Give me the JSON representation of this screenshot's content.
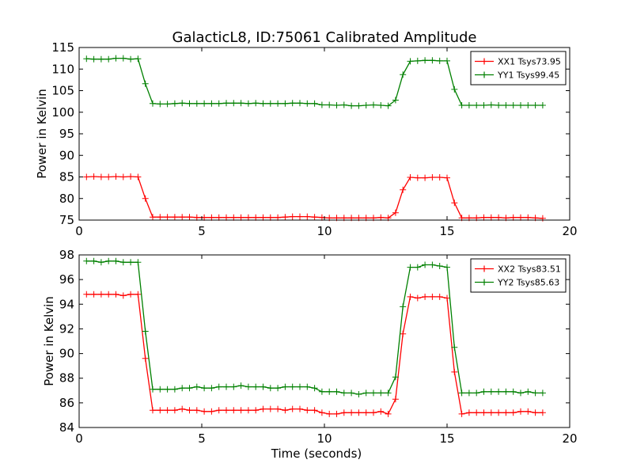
{
  "figure": {
    "title": "GalacticL8, ID:75061 Calibrated Amplitude"
  },
  "chart_data": [
    {
      "type": "line",
      "title": "GalacticL8, ID:75061 Calibrated Amplitude",
      "xlabel": "",
      "ylabel": "Power in Kelvin",
      "xlim": [
        0,
        20
      ],
      "ylim": [
        75,
        115
      ],
      "xticks": [
        0,
        5,
        10,
        15,
        20
      ],
      "yticks": [
        75,
        80,
        85,
        90,
        95,
        100,
        105,
        110,
        115
      ],
      "grid": false,
      "legend_position": "top-right",
      "x": [
        0.3,
        0.6,
        0.9,
        1.2,
        1.5,
        1.8,
        2.1,
        2.4,
        2.7,
        3.0,
        3.3,
        3.6,
        3.9,
        4.2,
        4.5,
        4.8,
        5.1,
        5.4,
        5.7,
        6.0,
        6.3,
        6.6,
        6.9,
        7.2,
        7.5,
        7.8,
        8.1,
        8.4,
        8.7,
        9.0,
        9.3,
        9.6,
        9.9,
        10.2,
        10.5,
        10.8,
        11.1,
        11.4,
        11.7,
        12.0,
        12.3,
        12.6,
        12.9,
        13.2,
        13.5,
        13.8,
        14.1,
        14.4,
        14.7,
        15.0,
        15.3,
        15.6,
        15.9,
        16.2,
        16.5,
        16.8,
        17.1,
        17.4,
        17.7,
        18.0,
        18.3,
        18.6,
        18.9
      ],
      "series": [
        {
          "name": "XX1 Tsys73.95",
          "color": "#ff0000",
          "values": [
            85.0,
            85.1,
            85.0,
            85.0,
            85.1,
            85.0,
            85.1,
            85.0,
            80.0,
            75.7,
            75.7,
            75.7,
            75.7,
            75.7,
            75.7,
            75.6,
            75.6,
            75.6,
            75.6,
            75.6,
            75.6,
            75.6,
            75.6,
            75.6,
            75.6,
            75.6,
            75.6,
            75.7,
            75.8,
            75.8,
            75.8,
            75.7,
            75.6,
            75.5,
            75.5,
            75.5,
            75.5,
            75.5,
            75.5,
            75.5,
            75.6,
            75.5,
            76.7,
            82.0,
            84.9,
            84.8,
            84.8,
            84.9,
            84.9,
            84.8,
            79.0,
            75.5,
            75.5,
            75.5,
            75.6,
            75.6,
            75.6,
            75.5,
            75.6,
            75.6,
            75.6,
            75.5,
            75.4
          ]
        },
        {
          "name": "YY1 Tsys99.45",
          "color": "#008000",
          "values": [
            112.4,
            112.3,
            112.3,
            112.3,
            112.5,
            112.5,
            112.3,
            112.4,
            106.6,
            102.0,
            101.9,
            101.9,
            102.0,
            102.1,
            102.0,
            102.0,
            102.0,
            102.0,
            102.0,
            102.1,
            102.1,
            102.1,
            102.0,
            102.1,
            102.0,
            102.0,
            102.0,
            102.0,
            102.1,
            102.1,
            102.0,
            102.0,
            101.7,
            101.7,
            101.6,
            101.7,
            101.5,
            101.5,
            101.6,
            101.7,
            101.6,
            101.5,
            102.8,
            108.7,
            111.8,
            111.9,
            112.0,
            112.0,
            111.9,
            111.9,
            105.3,
            101.6,
            101.6,
            101.6,
            101.6,
            101.7,
            101.6,
            101.6,
            101.6,
            101.6,
            101.6,
            101.6,
            101.6
          ]
        }
      ]
    },
    {
      "type": "line",
      "title": "",
      "xlabel": "Time (seconds)",
      "ylabel": "Power in Kelvin",
      "xlim": [
        0,
        20
      ],
      "ylim": [
        84,
        98
      ],
      "xticks": [
        0,
        5,
        10,
        15,
        20
      ],
      "yticks": [
        84,
        86,
        88,
        90,
        92,
        94,
        96,
        98
      ],
      "grid": false,
      "legend_position": "top-right",
      "x": [
        0.3,
        0.6,
        0.9,
        1.2,
        1.5,
        1.8,
        2.1,
        2.4,
        2.7,
        3.0,
        3.3,
        3.6,
        3.9,
        4.2,
        4.5,
        4.8,
        5.1,
        5.4,
        5.7,
        6.0,
        6.3,
        6.6,
        6.9,
        7.2,
        7.5,
        7.8,
        8.1,
        8.4,
        8.7,
        9.0,
        9.3,
        9.6,
        9.9,
        10.2,
        10.5,
        10.8,
        11.1,
        11.4,
        11.7,
        12.0,
        12.3,
        12.6,
        12.9,
        13.2,
        13.5,
        13.8,
        14.1,
        14.4,
        14.7,
        15.0,
        15.3,
        15.6,
        15.9,
        16.2,
        16.5,
        16.8,
        17.1,
        17.4,
        17.7,
        18.0,
        18.3,
        18.6,
        18.9
      ],
      "series": [
        {
          "name": "XX2 Tsys83.51",
          "color": "#ff0000",
          "values": [
            94.8,
            94.8,
            94.8,
            94.8,
            94.8,
            94.7,
            94.8,
            94.8,
            89.6,
            85.4,
            85.4,
            85.4,
            85.4,
            85.5,
            85.4,
            85.4,
            85.3,
            85.3,
            85.4,
            85.4,
            85.4,
            85.4,
            85.4,
            85.4,
            85.5,
            85.5,
            85.5,
            85.4,
            85.5,
            85.5,
            85.4,
            85.4,
            85.2,
            85.1,
            85.1,
            85.2,
            85.2,
            85.2,
            85.2,
            85.2,
            85.3,
            85.1,
            86.3,
            91.6,
            94.6,
            94.5,
            94.6,
            94.6,
            94.6,
            94.5,
            88.5,
            85.1,
            85.2,
            85.2,
            85.2,
            85.2,
            85.2,
            85.2,
            85.2,
            85.3,
            85.3,
            85.2,
            85.2
          ]
        },
        {
          "name": "YY2 Tsys85.63",
          "color": "#008000",
          "values": [
            97.5,
            97.5,
            97.4,
            97.5,
            97.5,
            97.4,
            97.4,
            97.4,
            91.8,
            87.1,
            87.1,
            87.1,
            87.1,
            87.2,
            87.2,
            87.3,
            87.2,
            87.2,
            87.3,
            87.3,
            87.3,
            87.4,
            87.3,
            87.3,
            87.3,
            87.2,
            87.2,
            87.3,
            87.3,
            87.3,
            87.3,
            87.2,
            86.9,
            86.9,
            86.9,
            86.8,
            86.8,
            86.7,
            86.8,
            86.8,
            86.8,
            86.8,
            88.1,
            93.8,
            97.0,
            97.0,
            97.2,
            97.2,
            97.1,
            97.0,
            90.5,
            86.8,
            86.8,
            86.8,
            86.9,
            86.9,
            86.9,
            86.9,
            86.9,
            86.8,
            86.9,
            86.8,
            86.8
          ]
        }
      ]
    }
  ]
}
